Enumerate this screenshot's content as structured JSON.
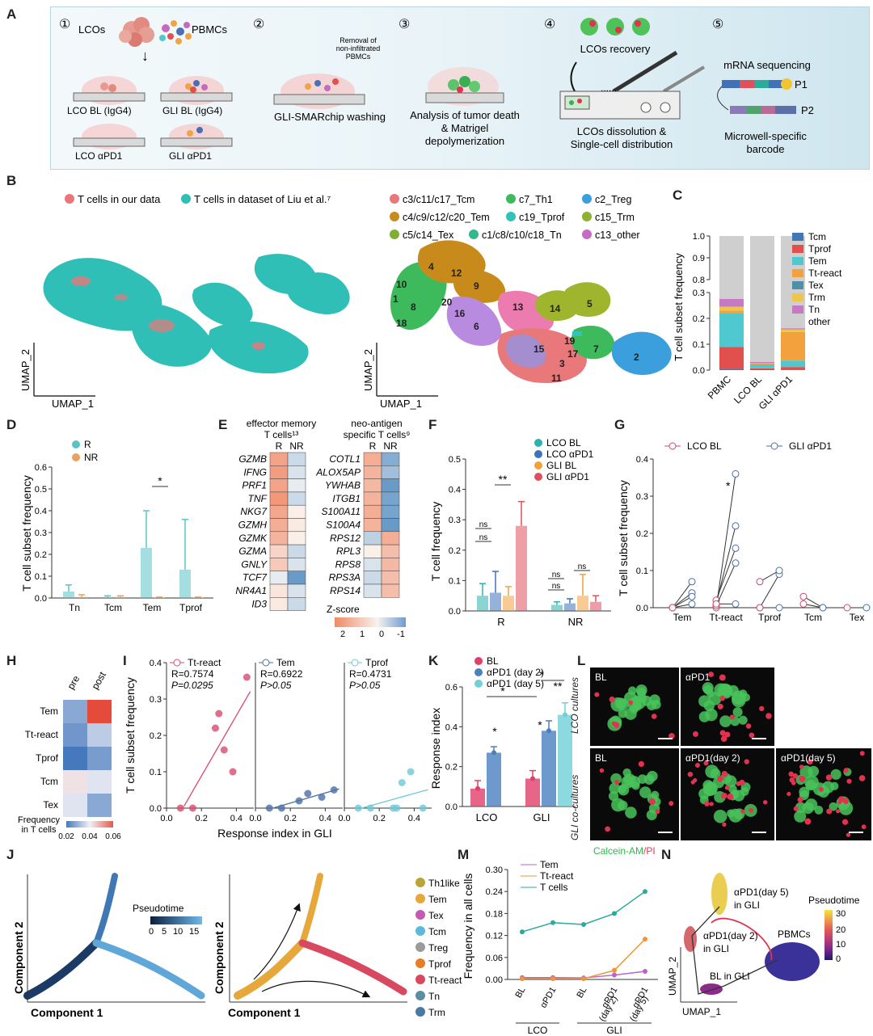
{
  "panels": {
    "A": "A",
    "B": "B",
    "C": "C",
    "D": "D",
    "E": "E",
    "F": "F",
    "G": "G",
    "H": "H",
    "I": "I",
    "J": "J",
    "K": "K",
    "L": "L",
    "M": "M",
    "N": "N"
  },
  "panelA": {
    "steps": [
      "①",
      "②",
      "③",
      "④",
      "⑤"
    ],
    "lcos": "LCOs",
    "pbmcs": "PBMCs",
    "lco_bl": "LCO BL (IgG4)",
    "gli_bl": "GLI BL (IgG4)",
    "lco_apd1": "LCO αPD1",
    "gli_apd1": "GLI αPD1",
    "removal": [
      "Removal of",
      "non-infiltrated",
      "PBMCs"
    ],
    "washing": "GLI-SMARchip washing",
    "analysis": [
      "Analysis of tumor death",
      "& Matrigel",
      "depolymerization"
    ],
    "recovery": "LCOs recovery",
    "dissolution": [
      "LCOs dissolution &",
      "Single-cell distribution"
    ],
    "dots": "......",
    "mrna": "mRNA sequencing",
    "p1": "P1",
    "p2": "P2",
    "barcode": [
      "Microwell-specific",
      "barcode"
    ]
  },
  "panelB": {
    "legend_left": [
      "T cells in our data",
      "T cells in dataset of Liu et al.⁷"
    ],
    "legend_right": [
      "c3/c11/c17_Tcm",
      "c7_Th1",
      "c2_Treg",
      "c4/c9/c12/c20_Tem",
      "c19_Tprof",
      "c15_Trm",
      "c5/c14_Tex",
      "c1/c8/c10/c18_Tn",
      "c13_other"
    ],
    "legend_right_colors": [
      "#e8787a",
      "#3dbb5c",
      "#3a9fdc",
      "#c98a1c",
      "#33c2b8",
      "#8fb22e",
      "#7fae33",
      "#33b889",
      "#c86bc4"
    ],
    "umap_x": "UMAP_1",
    "umap_y": "UMAP_2",
    "cluster_labels": [
      "4",
      "12",
      "10",
      "9",
      "1",
      "8",
      "20",
      "16",
      "18",
      "6",
      "13",
      "14",
      "5",
      "15",
      "19",
      "17",
      "7",
      "2",
      "3",
      "11"
    ]
  },
  "chart_data": [
    {
      "id": "C",
      "type": "bar",
      "categories": [
        "PBMC",
        "LCO BL",
        "GLI αPD1"
      ],
      "ylabel": "T cell subset frequency",
      "yticks_lower": [
        "0.0",
        "0.1",
        "0.2",
        "0.3"
      ],
      "yticks_upper": [
        "0.8",
        "0.9",
        "1.0"
      ],
      "legend": [
        "Tcm",
        "Tprof",
        "Tem",
        "Tt-react",
        "Tex",
        "Trm",
        "Tn",
        "other"
      ],
      "colors": {
        "Tcm": "#3f78b5",
        "Tprof": "#e2504d",
        "Tem": "#4fc8d0",
        "Tt-react": "#f2a13c",
        "Tex": "#4f8fa8",
        "Trm": "#f0c64a",
        "Tn": "#c77ac4",
        "other": "#cfcfcf"
      },
      "series": [
        {
          "name": "Tcm",
          "values": [
            0.005,
            0.003,
            0.002
          ]
        },
        {
          "name": "Tprof",
          "values": [
            0.085,
            0.004,
            0.01
          ]
        },
        {
          "name": "Tem",
          "values": [
            0.13,
            0.015,
            0.025
          ]
        },
        {
          "name": "Tt-react",
          "values": [
            0.01,
            0.003,
            0.11
          ]
        },
        {
          "name": "Tex",
          "values": [
            0.0,
            0.0,
            0.0
          ]
        },
        {
          "name": "Trm",
          "values": [
            0.015,
            0.002,
            0.01
          ]
        },
        {
          "name": "Tn",
          "values": [
            0.03,
            0.005,
            0.005
          ]
        },
        {
          "name": "other",
          "values": [
            0.725,
            0.968,
            0.838
          ]
        }
      ]
    },
    {
      "id": "D",
      "type": "bar",
      "categories": [
        "Tn",
        "Tcm",
        "Tem",
        "Tprof"
      ],
      "ylabel": "T cell subset frequency",
      "ylim": [
        0,
        0.6
      ],
      "yticks": [
        "0.0",
        "0.1",
        "0.2",
        "0.3",
        "0.4",
        "0.5",
        "0.6"
      ],
      "series": [
        {
          "name": "R",
          "color": "#5bc2c8",
          "values": [
            0.03,
            0.005,
            0.23,
            0.13
          ],
          "err": [
            0.03,
            0.005,
            0.17,
            0.23
          ]
        },
        {
          "name": "NR",
          "color": "#e8a25a",
          "values": [
            0.005,
            0.005,
            0.002,
            0.002
          ],
          "err": [
            0.01,
            0.005,
            0.002,
            0.002
          ]
        }
      ],
      "annotation": "*"
    },
    {
      "id": "E",
      "type": "heatmap",
      "titles": [
        "effector memory",
        "T cells¹³",
        "neo-antigen",
        "specific T cells⁹"
      ],
      "cols": [
        "R",
        "NR"
      ],
      "genes_left": [
        "GZMB",
        "IFNG",
        "PRF1",
        "TNF",
        "NKG7",
        "GZMH",
        "GZMK",
        "GZMA",
        "GNLY",
        "TCF7",
        "NR4A1",
        "ID3"
      ],
      "genes_right": [
        "COTL1",
        "ALOX5AP",
        "YWHAB",
        "ITGB1",
        "S100A11",
        "S100A4",
        "RPS12",
        "RPL3",
        "RPS8",
        "RPS3A",
        "RPS14"
      ],
      "z_left": [
        [
          1.5,
          -0.3
        ],
        [
          1.6,
          -0.2
        ],
        [
          1.5,
          -0.1
        ],
        [
          1.7,
          -0.3
        ],
        [
          1.4,
          0.1
        ],
        [
          1.3,
          0.2
        ],
        [
          1.2,
          0.1
        ],
        [
          0.6,
          -0.3
        ],
        [
          0.8,
          -0.2
        ],
        [
          -0.1,
          -1.0
        ],
        [
          0.3,
          -0.2
        ],
        [
          0.2,
          -0.3
        ]
      ],
      "z_right": [
        [
          1.3,
          -0.8
        ],
        [
          1.2,
          -0.6
        ],
        [
          1.1,
          -1.0
        ],
        [
          1.2,
          -0.9
        ],
        [
          1.3,
          -0.9
        ],
        [
          1.2,
          -1.0
        ],
        [
          -0.4,
          1.3
        ],
        [
          0.1,
          1.0
        ],
        [
          -0.2,
          1.1
        ],
        [
          -0.3,
          1.0
        ],
        [
          -0.2,
          1.0
        ]
      ],
      "zscore_label": "Z-score",
      "zticks": [
        "2",
        "1",
        "0",
        "-1"
      ]
    },
    {
      "id": "F",
      "type": "bar",
      "groups": [
        "R",
        "NR"
      ],
      "ylabel": "T cell frequency",
      "ylim": [
        0,
        0.5
      ],
      "yticks": [
        "0.0",
        "0.1",
        "0.2",
        "0.3",
        "0.4",
        "0.5"
      ],
      "series": [
        {
          "name": "LCO BL",
          "color": "#2ab3ab",
          "values": [
            0.05,
            0.02
          ],
          "err": [
            0.04,
            0.01
          ]
        },
        {
          "name": "LCO αPD1",
          "color": "#3f72b8",
          "values": [
            0.06,
            0.025
          ],
          "err": [
            0.07,
            0.015
          ]
        },
        {
          "name": "GLI BL",
          "color": "#f0a13b",
          "values": [
            0.05,
            0.05
          ],
          "err": [
            0.03,
            0.07
          ]
        },
        {
          "name": "GLI αPD1",
          "color": "#e04f5c",
          "values": [
            0.28,
            0.03
          ],
          "err": [
            0.08,
            0.02
          ]
        }
      ],
      "annotations": [
        "ns",
        "ns",
        "**",
        "ns",
        "ns",
        "ns"
      ]
    },
    {
      "id": "G",
      "type": "line",
      "categories": [
        "Tem",
        "Tt-react",
        "Tprof",
        "Tcm",
        "Tex"
      ],
      "ylabel": "T cell subset frequency",
      "ylim": [
        0,
        0.4
      ],
      "yticks": [
        "0.0",
        "0.1",
        "0.2",
        "0.3",
        "0.4"
      ],
      "series": [
        {
          "name": "LCO BL",
          "color": "#c94a6a"
        },
        {
          "name": "GLI αPD1",
          "color": "#4a6fa5"
        }
      ],
      "pairs": {
        "Tem": [
          [
            0,
            0.07
          ],
          [
            0,
            0.04
          ],
          [
            0,
            0.03
          ],
          [
            0,
            0.01
          ]
        ],
        "Tt-react": [
          [
            0,
            0.36
          ],
          [
            0.01,
            0.22
          ],
          [
            0.02,
            0.16
          ],
          [
            0.005,
            0.12
          ],
          [
            0.01,
            0.01
          ]
        ],
        "Tprof": [
          [
            0,
            0.09
          ],
          [
            0.07,
            0.1
          ],
          [
            0,
            0.0
          ]
        ],
        "Tcm": [
          [
            0.03,
            0.0
          ],
          [
            0.01,
            0.0
          ]
        ],
        "Tex": [
          [
            0,
            0
          ]
        ]
      },
      "annotation": "*"
    },
    {
      "id": "H",
      "type": "heatmap",
      "cols": [
        "pre",
        "post"
      ],
      "rows": [
        "Tem",
        "Tt-react",
        "Tprof",
        "Tcm",
        "Tex"
      ],
      "values": [
        [
          0.028,
          0.062
        ],
        [
          0.025,
          0.034
        ],
        [
          0.02,
          0.026
        ],
        [
          0.042,
          0.038
        ],
        [
          0.038,
          0.028
        ]
      ],
      "legend_label": [
        "Frequency",
        "in T cells"
      ],
      "ticks": [
        "0.02",
        "0.04",
        "0.06"
      ]
    },
    {
      "id": "I",
      "type": "scatter",
      "ylabel": "T cell subset frequency",
      "xlabel": "Response index in GLI",
      "ylim": [
        0,
        0.4
      ],
      "xlim": [
        0,
        0.5
      ],
      "yticks": [
        "0.0",
        "0.1",
        "0.2",
        "0.3",
        "0.4"
      ],
      "xticks": [
        "0.0",
        "0.2",
        "0.4"
      ],
      "series": [
        {
          "name": "Tt-react",
          "color": "#d94a6e",
          "R": "R=0.7574",
          "P": "P=0.0295",
          "points": [
            [
              0.08,
              0.0
            ],
            [
              0.15,
              0.0
            ],
            [
              0.28,
              0.22
            ],
            [
              0.33,
              0.16
            ],
            [
              0.38,
              0.1
            ],
            [
              0.46,
              0.36
            ],
            [
              0.3,
              0.26
            ]
          ]
        },
        {
          "name": "Tem",
          "color": "#4a6fa5",
          "R": "R=0.6922",
          "P": "P>0.05",
          "points": [
            [
              0.08,
              0.0
            ],
            [
              0.15,
              0.0
            ],
            [
              0.25,
              0.02
            ],
            [
              0.3,
              0.04
            ],
            [
              0.38,
              0.03
            ],
            [
              0.45,
              0.05
            ]
          ]
        },
        {
          "name": "Tprof",
          "color": "#6fc8d4",
          "R": "R=0.4731",
          "P": "P>0.05",
          "points": [
            [
              0.08,
              0.0
            ],
            [
              0.15,
              0.0
            ],
            [
              0.28,
              0.0
            ],
            [
              0.3,
              0.0
            ],
            [
              0.38,
              0.1
            ],
            [
              0.33,
              0.07
            ],
            [
              0.45,
              0.0
            ]
          ]
        }
      ]
    },
    {
      "id": "K",
      "type": "bar",
      "groups": [
        "LCO",
        "GLI"
      ],
      "ylabel": "Response index",
      "ylim": [
        0,
        0.6
      ],
      "yticks": [
        "0.0",
        "0.2",
        "0.4",
        "0.6"
      ],
      "series": [
        {
          "name": "BL",
          "color": "#e03f6a",
          "values": [
            0.09,
            0.14
          ],
          "err": [
            0.04,
            0.04
          ]
        },
        {
          "name": "αPD1 (day 2)",
          "color": "#4a7fc0",
          "values": [
            0.27,
            0.38
          ],
          "err": [
            0.03,
            0.05
          ]
        },
        {
          "name": "αPD1 (day 5)",
          "color": "#6fd0d8",
          "values": [
            null,
            0.46
          ],
          "err": [
            null,
            0.06
          ]
        }
      ],
      "annotations": [
        "*",
        "*",
        "*",
        "*",
        "**"
      ]
    },
    {
      "id": "M",
      "type": "line",
      "categories": [
        "BL",
        "αPD1",
        "BL",
        "αPD1\n(day 2)",
        "αPD1\n(day 5)"
      ],
      "group_labels": [
        "LCO",
        "GLI"
      ],
      "ylabel": "Frequency in all cells",
      "ylim": [
        0,
        0.3
      ],
      "yticks": [
        "0.00",
        "0.03",
        "0.06",
        "0.09",
        "0.12",
        "0.15",
        "0.18",
        "0.21",
        "0.24",
        "0.27",
        "0.30"
      ],
      "series": [
        {
          "name": "Tem",
          "color": "#b765c6",
          "values": [
            0.005,
            0.005,
            0.004,
            0.012,
            0.022
          ]
        },
        {
          "name": "Tt-react",
          "color": "#ef9534",
          "values": [
            0.002,
            0.002,
            0.002,
            0.025,
            0.11
          ]
        },
        {
          "name": "T cells",
          "color": "#2bab9c",
          "values": [
            0.13,
            0.155,
            0.15,
            0.18,
            0.24
          ]
        }
      ]
    }
  ],
  "panelJ": {
    "xlabel": "Component 1",
    "ylabel": "Component 2",
    "pseudotime": "Pseudotime",
    "pt_ticks": [
      "0",
      "5",
      "10",
      "15"
    ],
    "legend": [
      "Th1like",
      "Tem",
      "Tex",
      "Tcm",
      "Treg",
      "Tprof",
      "Tt-react",
      "Tn",
      "Trm"
    ],
    "legend_colors": [
      "#b9a43a",
      "#e6a83a",
      "#c45ab3",
      "#5db8dd",
      "#9b9b9b",
      "#e67e28",
      "#d8485e",
      "#5b8f9f",
      "#4b7aa0"
    ]
  },
  "panelL": {
    "labels": [
      "BL",
      "αPD1",
      "BL",
      "αPD1(day 2)",
      "αPD1(day 5)"
    ],
    "row1": "LCO cultures",
    "row2": "GLI co-cultures",
    "stain1": "Calcein-AM",
    "stain2": "/PI"
  },
  "panelN": {
    "xlabel": "UMAP_1",
    "ylabel": "UMAP_2",
    "labels": [
      "αPD1(day 5)",
      "in GLI",
      "αPD1(day 2)",
      "in GLI",
      "PBMCs",
      "BL in GLI"
    ],
    "pseudotime": "Pseudotime",
    "pt_ticks": [
      "30",
      "20",
      "10",
      "0"
    ]
  },
  "colors": {
    "gli_teal": "#2fbfb6",
    "our_red": "#e9777a",
    "panelA_bg": "#eaf4f8"
  }
}
